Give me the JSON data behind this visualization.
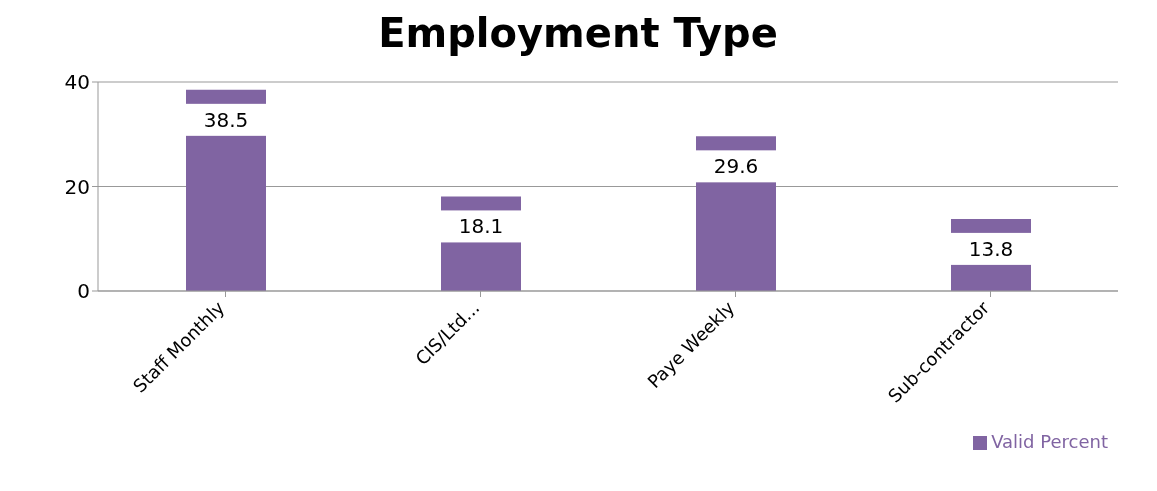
{
  "chart_data": {
    "type": "bar",
    "title": "Employment Type",
    "categories": [
      "Staff Monthly",
      "CIS/Ltd...",
      "Paye Weekly",
      "Sub-contractor"
    ],
    "series": [
      {
        "name": "Valid Percent",
        "color": "#8064a2",
        "values": [
          38.5,
          18.1,
          29.6,
          13.8
        ]
      }
    ],
    "ylim": [
      0,
      40
    ],
    "yticks": [
      0,
      20,
      40
    ],
    "grid": "y",
    "legend": "bottom right",
    "data_labels": true
  }
}
